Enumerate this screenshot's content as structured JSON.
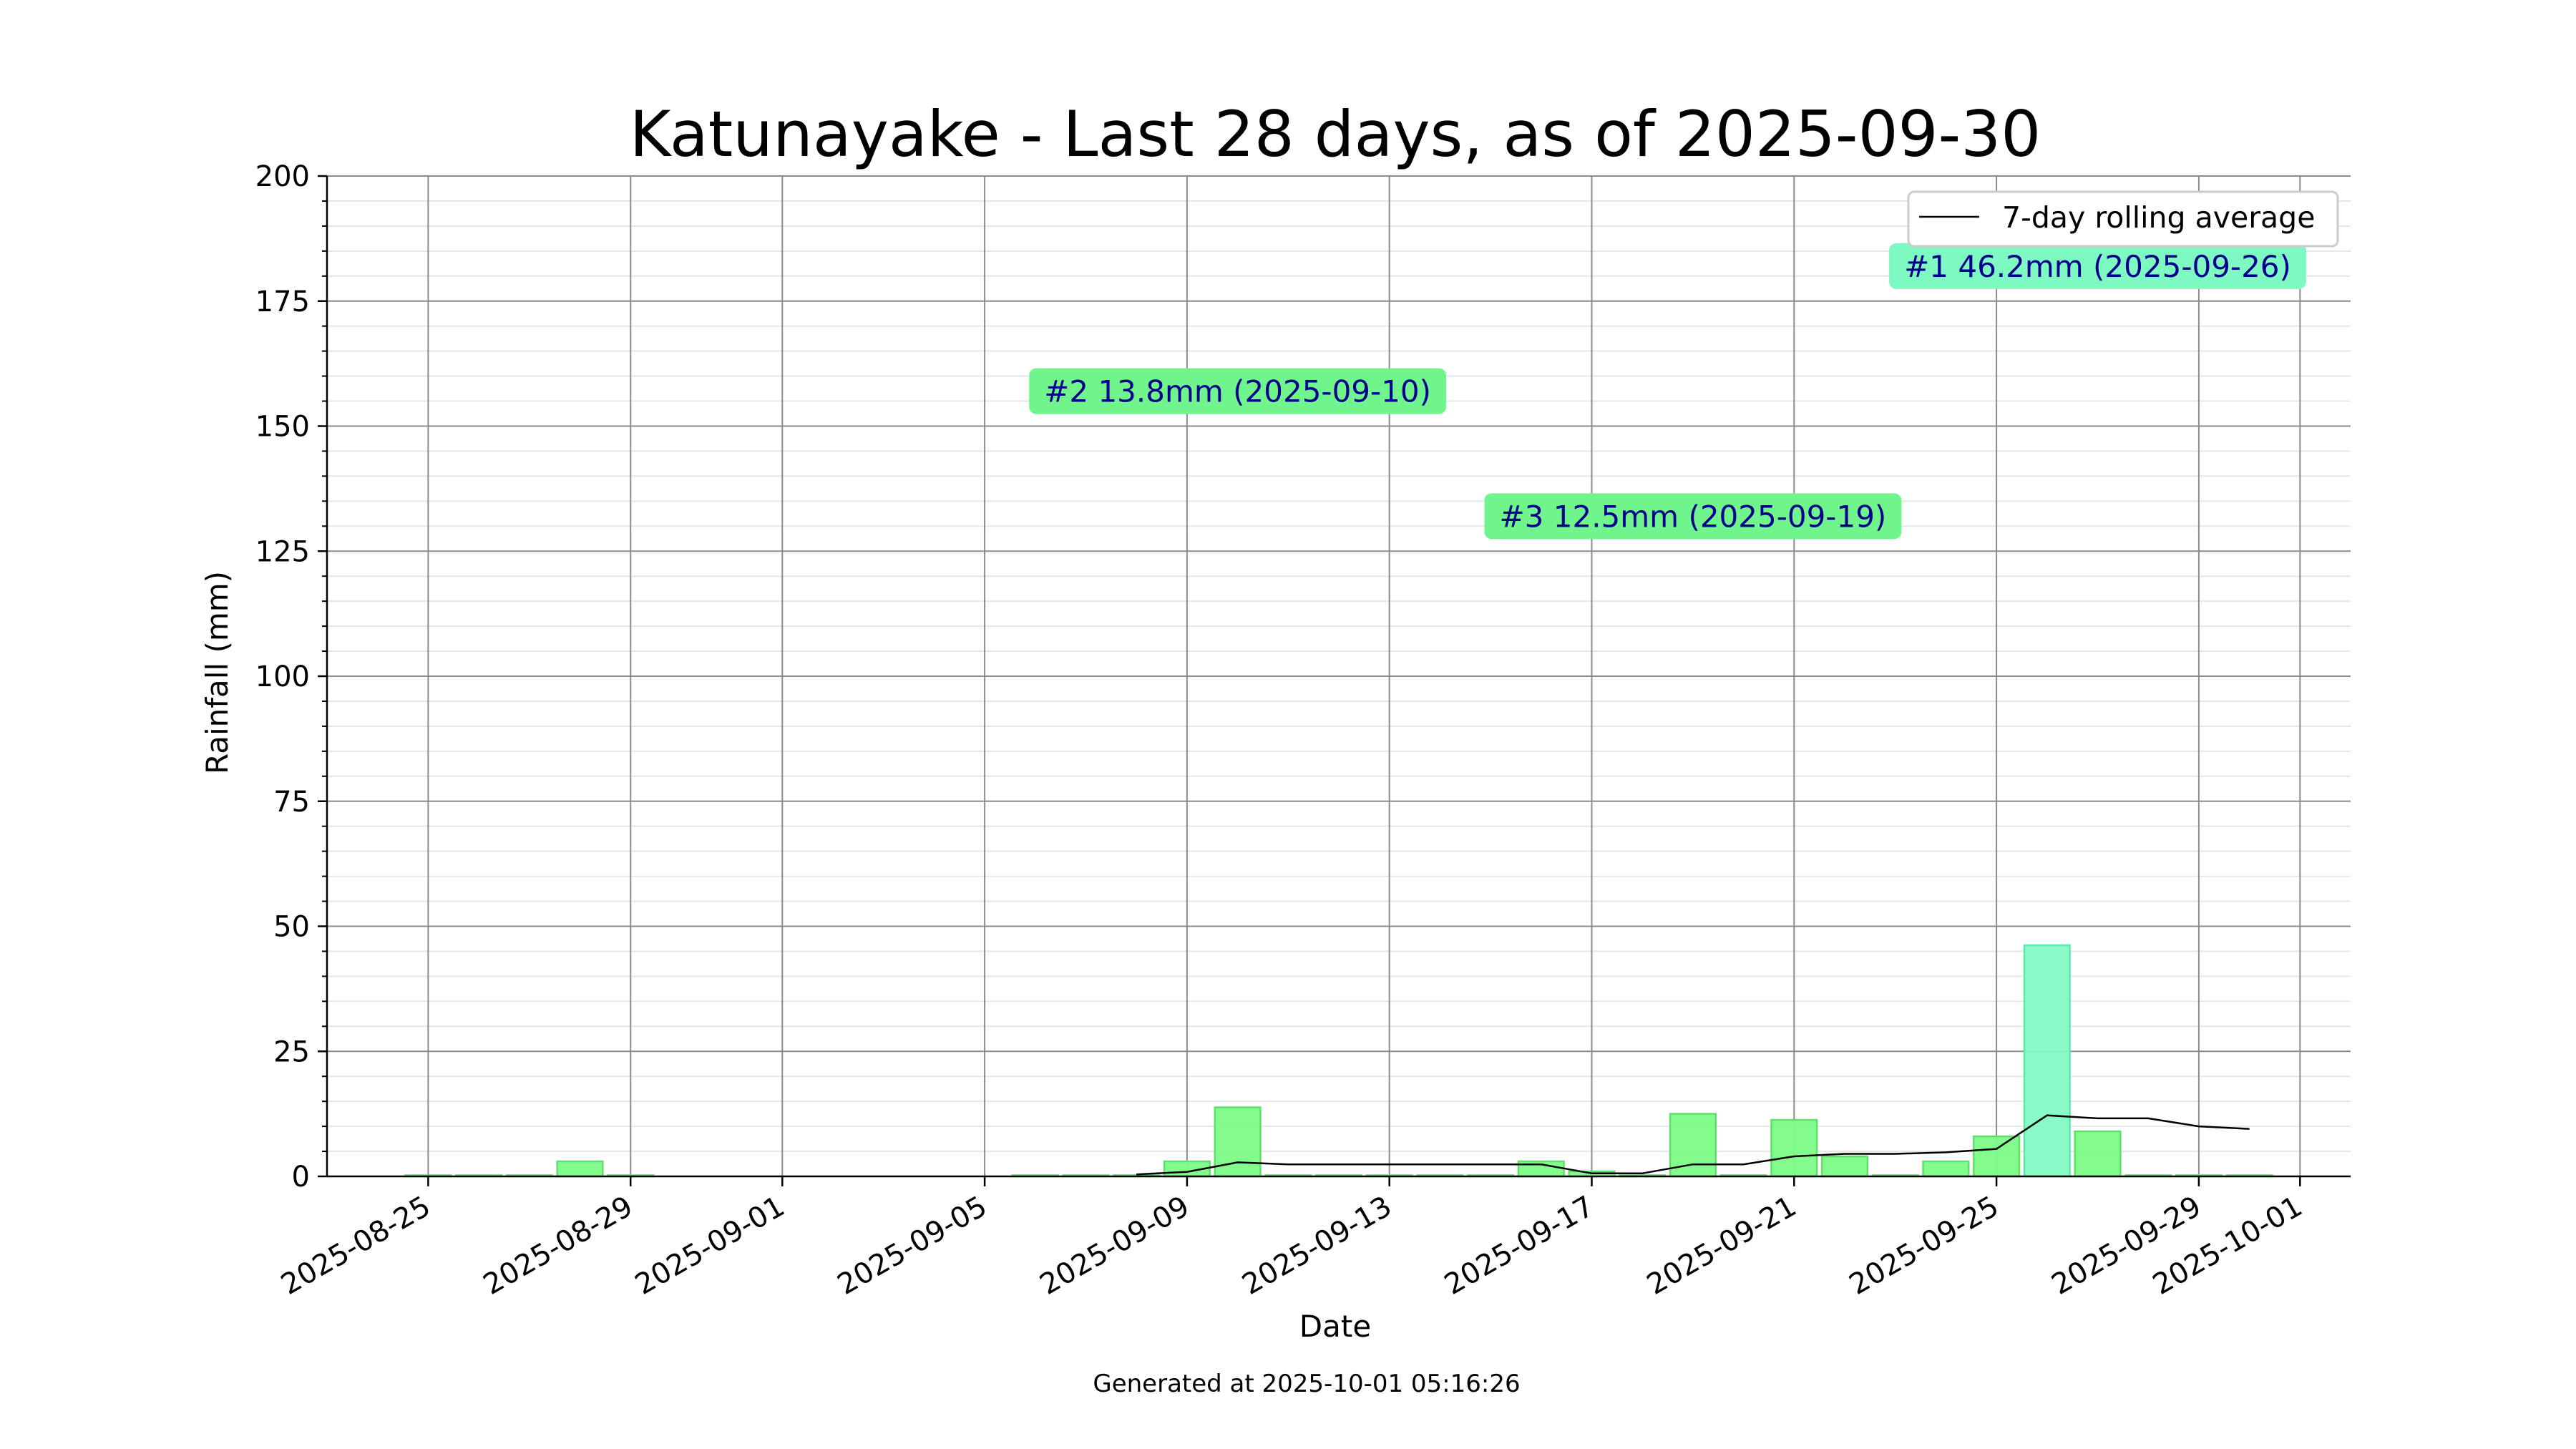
{
  "chart_data": {
    "type": "bar",
    "title": "Katunayake - Last 28 days, as of 2025-09-30",
    "xlabel": "Date",
    "ylabel": "Rainfall (mm)",
    "ylim": [
      0,
      200
    ],
    "xlim": [
      "2025-08-23",
      "2025-10-02"
    ],
    "y_ticks": [
      "0",
      "25",
      "50",
      "75",
      "100",
      "125",
      "150",
      "175",
      "200"
    ],
    "x_ticks": [
      "2025-08-25",
      "2025-08-29",
      "2025-09-01",
      "2025-09-05",
      "2025-09-09",
      "2025-09-13",
      "2025-09-17",
      "2025-09-21",
      "2025-09-25",
      "2025-09-29",
      "2025-10-01"
    ],
    "grid": true,
    "legend": {
      "placement": "top-right",
      "entries": [
        "7-day rolling average"
      ]
    },
    "bar_color": "#7dfc87",
    "top_bar_color": "#83fbc6",
    "line_color": "#000000",
    "annotation_bg": "#6ff58c",
    "top_annotation_bg": "#7ff9c2",
    "annotation_text_color": "#00008b",
    "series": [
      {
        "values": [
          [
            "2025-08-25",
            0
          ],
          [
            "2025-08-26",
            0
          ],
          [
            "2025-08-27",
            0
          ],
          [
            "2025-08-28",
            3.0
          ],
          [
            "2025-08-29",
            0
          ],
          [
            "2025-09-06",
            0
          ],
          [
            "2025-09-07",
            0
          ],
          [
            "2025-09-08",
            0
          ],
          [
            "2025-09-09",
            3.0
          ],
          [
            "2025-09-10",
            13.8
          ],
          [
            "2025-09-11",
            0
          ],
          [
            "2025-09-12",
            0
          ],
          [
            "2025-09-13",
            0
          ],
          [
            "2025-09-14",
            0
          ],
          [
            "2025-09-15",
            0
          ],
          [
            "2025-09-16",
            3.0
          ],
          [
            "2025-09-17",
            1.0
          ],
          [
            "2025-09-18",
            0
          ],
          [
            "2025-09-19",
            12.5
          ],
          [
            "2025-09-20",
            0
          ],
          [
            "2025-09-21",
            11.3
          ],
          [
            "2025-09-22",
            4.0
          ],
          [
            "2025-09-23",
            0
          ],
          [
            "2025-09-24",
            3.0
          ],
          [
            "2025-09-25",
            8.0
          ],
          [
            "2025-09-26",
            46.2
          ],
          [
            "2025-09-27",
            9.0
          ],
          [
            "2025-09-28",
            0
          ],
          [
            "2025-09-29",
            0
          ],
          [
            "2025-09-30",
            0
          ]
        ]
      },
      {
        "name": "7-day rolling average",
        "type": "line",
        "values": [
          [
            "2025-09-08",
            0.4
          ],
          [
            "2025-09-09",
            0.9
          ],
          [
            "2025-09-10",
            2.8
          ],
          [
            "2025-09-11",
            2.4
          ],
          [
            "2025-09-12",
            2.4
          ],
          [
            "2025-09-13",
            2.4
          ],
          [
            "2025-09-14",
            2.4
          ],
          [
            "2025-09-15",
            2.4
          ],
          [
            "2025-09-16",
            2.4
          ],
          [
            "2025-09-17",
            0.6
          ],
          [
            "2025-09-18",
            0.6
          ],
          [
            "2025-09-19",
            2.4
          ],
          [
            "2025-09-20",
            2.4
          ],
          [
            "2025-09-21",
            4.0
          ],
          [
            "2025-09-22",
            4.5
          ],
          [
            "2025-09-23",
            4.5
          ],
          [
            "2025-09-24",
            4.8
          ],
          [
            "2025-09-25",
            5.5
          ],
          [
            "2025-09-26",
            12.2
          ],
          [
            "2025-09-27",
            11.6
          ],
          [
            "2025-09-28",
            11.6
          ],
          [
            "2025-09-29",
            10.0
          ],
          [
            "2025-09-30",
            9.5
          ]
        ]
      }
    ],
    "annotations": [
      {
        "text": "#1 46.2mm (2025-09-26)",
        "x": "2025-09-27",
        "y": 182,
        "top": true
      },
      {
        "text": "#2 13.8mm (2025-09-10)",
        "x": "2025-09-10",
        "y": 157,
        "top": false
      },
      {
        "text": "#3 12.5mm (2025-09-19)",
        "x": "2025-09-19",
        "y": 132,
        "top": false
      }
    ]
  },
  "footer": "Generated at 2025-10-01 05:16:26"
}
